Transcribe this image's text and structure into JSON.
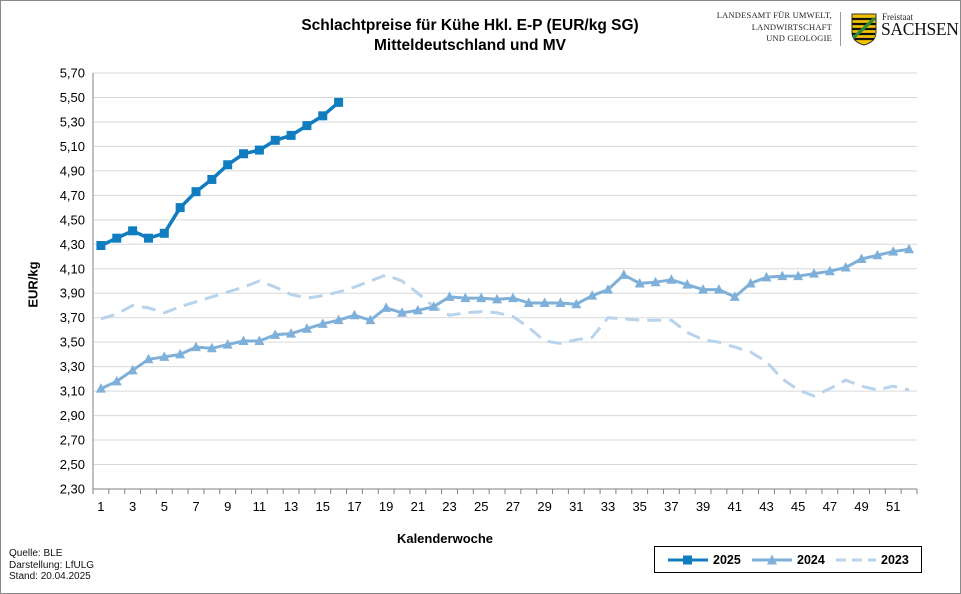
{
  "header": {
    "title_line1": "Schlachtpreise für Kühe Hkl. E-P (EUR/kg SG)",
    "title_line2": "Mitteldeutschland und MV"
  },
  "logo": {
    "agency_line1": "LANDESAMT FÜR UMWELT,",
    "agency_line2": "LANDWIRTSCHAFT",
    "agency_line3": "UND GEOLOGIE",
    "free_state": "Freistaat",
    "state": "SACHSEN",
    "icon": "saxony-coat-of-arms"
  },
  "source": {
    "line1": "Quelle:  BLE",
    "line2": "Darstellung: LfULG",
    "line3": "Stand: 20.04.2025"
  },
  "chart_data": {
    "type": "line",
    "ylabel": "EUR/kg",
    "xlabel": "Kalenderwoche",
    "ylim": [
      2.3,
      5.7
    ],
    "yticks": [
      "2,30",
      "2,50",
      "2,70",
      "2,90",
      "3,10",
      "3,30",
      "3,50",
      "3,70",
      "3,90",
      "4,10",
      "4,30",
      "4,50",
      "4,70",
      "4,90",
      "5,10",
      "5,30",
      "5,50",
      "5,70"
    ],
    "xlim": [
      1,
      52
    ],
    "xticks": [
      "1",
      "3",
      "5",
      "7",
      "9",
      "11",
      "13",
      "15",
      "17",
      "19",
      "21",
      "23",
      "25",
      "27",
      "29",
      "31",
      "33",
      "35",
      "37",
      "39",
      "41",
      "43",
      "45",
      "47",
      "49",
      "51"
    ],
    "grid": "horizontal",
    "legend_position": "bottom-right",
    "series": [
      {
        "name": "2025",
        "color": "#0f7dbf",
        "style": "solid-square-markers",
        "x": [
          1,
          2,
          3,
          4,
          5,
          6,
          7,
          8,
          9,
          10,
          11,
          12,
          13,
          14,
          15,
          16
        ],
        "values": [
          4.29,
          4.35,
          4.41,
          4.35,
          4.39,
          4.6,
          4.73,
          4.83,
          4.95,
          5.04,
          5.07,
          5.15,
          5.19,
          5.27,
          5.35,
          5.46
        ]
      },
      {
        "name": "2024",
        "color": "#7fb0d9",
        "style": "solid-triangle-markers",
        "x": [
          1,
          2,
          3,
          4,
          5,
          6,
          7,
          8,
          9,
          10,
          11,
          12,
          13,
          14,
          15,
          16,
          17,
          18,
          19,
          20,
          21,
          22,
          23,
          24,
          25,
          26,
          27,
          28,
          29,
          30,
          31,
          32,
          33,
          34,
          35,
          36,
          37,
          38,
          39,
          40,
          41,
          42,
          43,
          44,
          45,
          46,
          47,
          48,
          49,
          50,
          51,
          52
        ],
        "values": [
          3.12,
          3.18,
          3.27,
          3.36,
          3.38,
          3.4,
          3.46,
          3.45,
          3.48,
          3.51,
          3.51,
          3.56,
          3.57,
          3.61,
          3.65,
          3.68,
          3.72,
          3.68,
          3.78,
          3.74,
          3.76,
          3.79,
          3.87,
          3.86,
          3.86,
          3.85,
          3.86,
          3.82,
          3.82,
          3.82,
          3.81,
          3.88,
          3.93,
          4.05,
          3.98,
          3.99,
          4.01,
          3.97,
          3.93,
          3.93,
          3.87,
          3.98,
          4.03,
          4.04,
          4.04,
          4.06,
          4.08,
          4.11,
          4.18,
          4.21,
          4.24,
          4.26
        ]
      },
      {
        "name": "2023",
        "color": "#b8d3ec",
        "style": "dashed",
        "x": [
          1,
          2,
          3,
          4,
          5,
          6,
          7,
          8,
          9,
          10,
          11,
          12,
          13,
          14,
          15,
          16,
          17,
          18,
          19,
          20,
          21,
          22,
          23,
          24,
          25,
          26,
          27,
          28,
          29,
          30,
          31,
          32,
          33,
          34,
          35,
          36,
          37,
          38,
          39,
          40,
          41,
          42,
          43,
          44,
          45,
          46,
          47,
          48,
          49,
          50,
          51,
          52
        ],
        "values": [
          3.69,
          3.73,
          3.8,
          3.78,
          3.74,
          3.79,
          3.83,
          3.87,
          3.91,
          3.95,
          4.0,
          3.95,
          3.89,
          3.86,
          3.88,
          3.91,
          3.95,
          4.0,
          4.05,
          4.0,
          3.9,
          3.79,
          3.72,
          3.74,
          3.75,
          3.74,
          3.71,
          3.62,
          3.51,
          3.49,
          3.52,
          3.54,
          3.7,
          3.69,
          3.68,
          3.68,
          3.68,
          3.58,
          3.52,
          3.5,
          3.46,
          3.42,
          3.34,
          3.2,
          3.11,
          3.06,
          3.12,
          3.19,
          3.14,
          3.11,
          3.14,
          3.11
        ]
      }
    ]
  }
}
